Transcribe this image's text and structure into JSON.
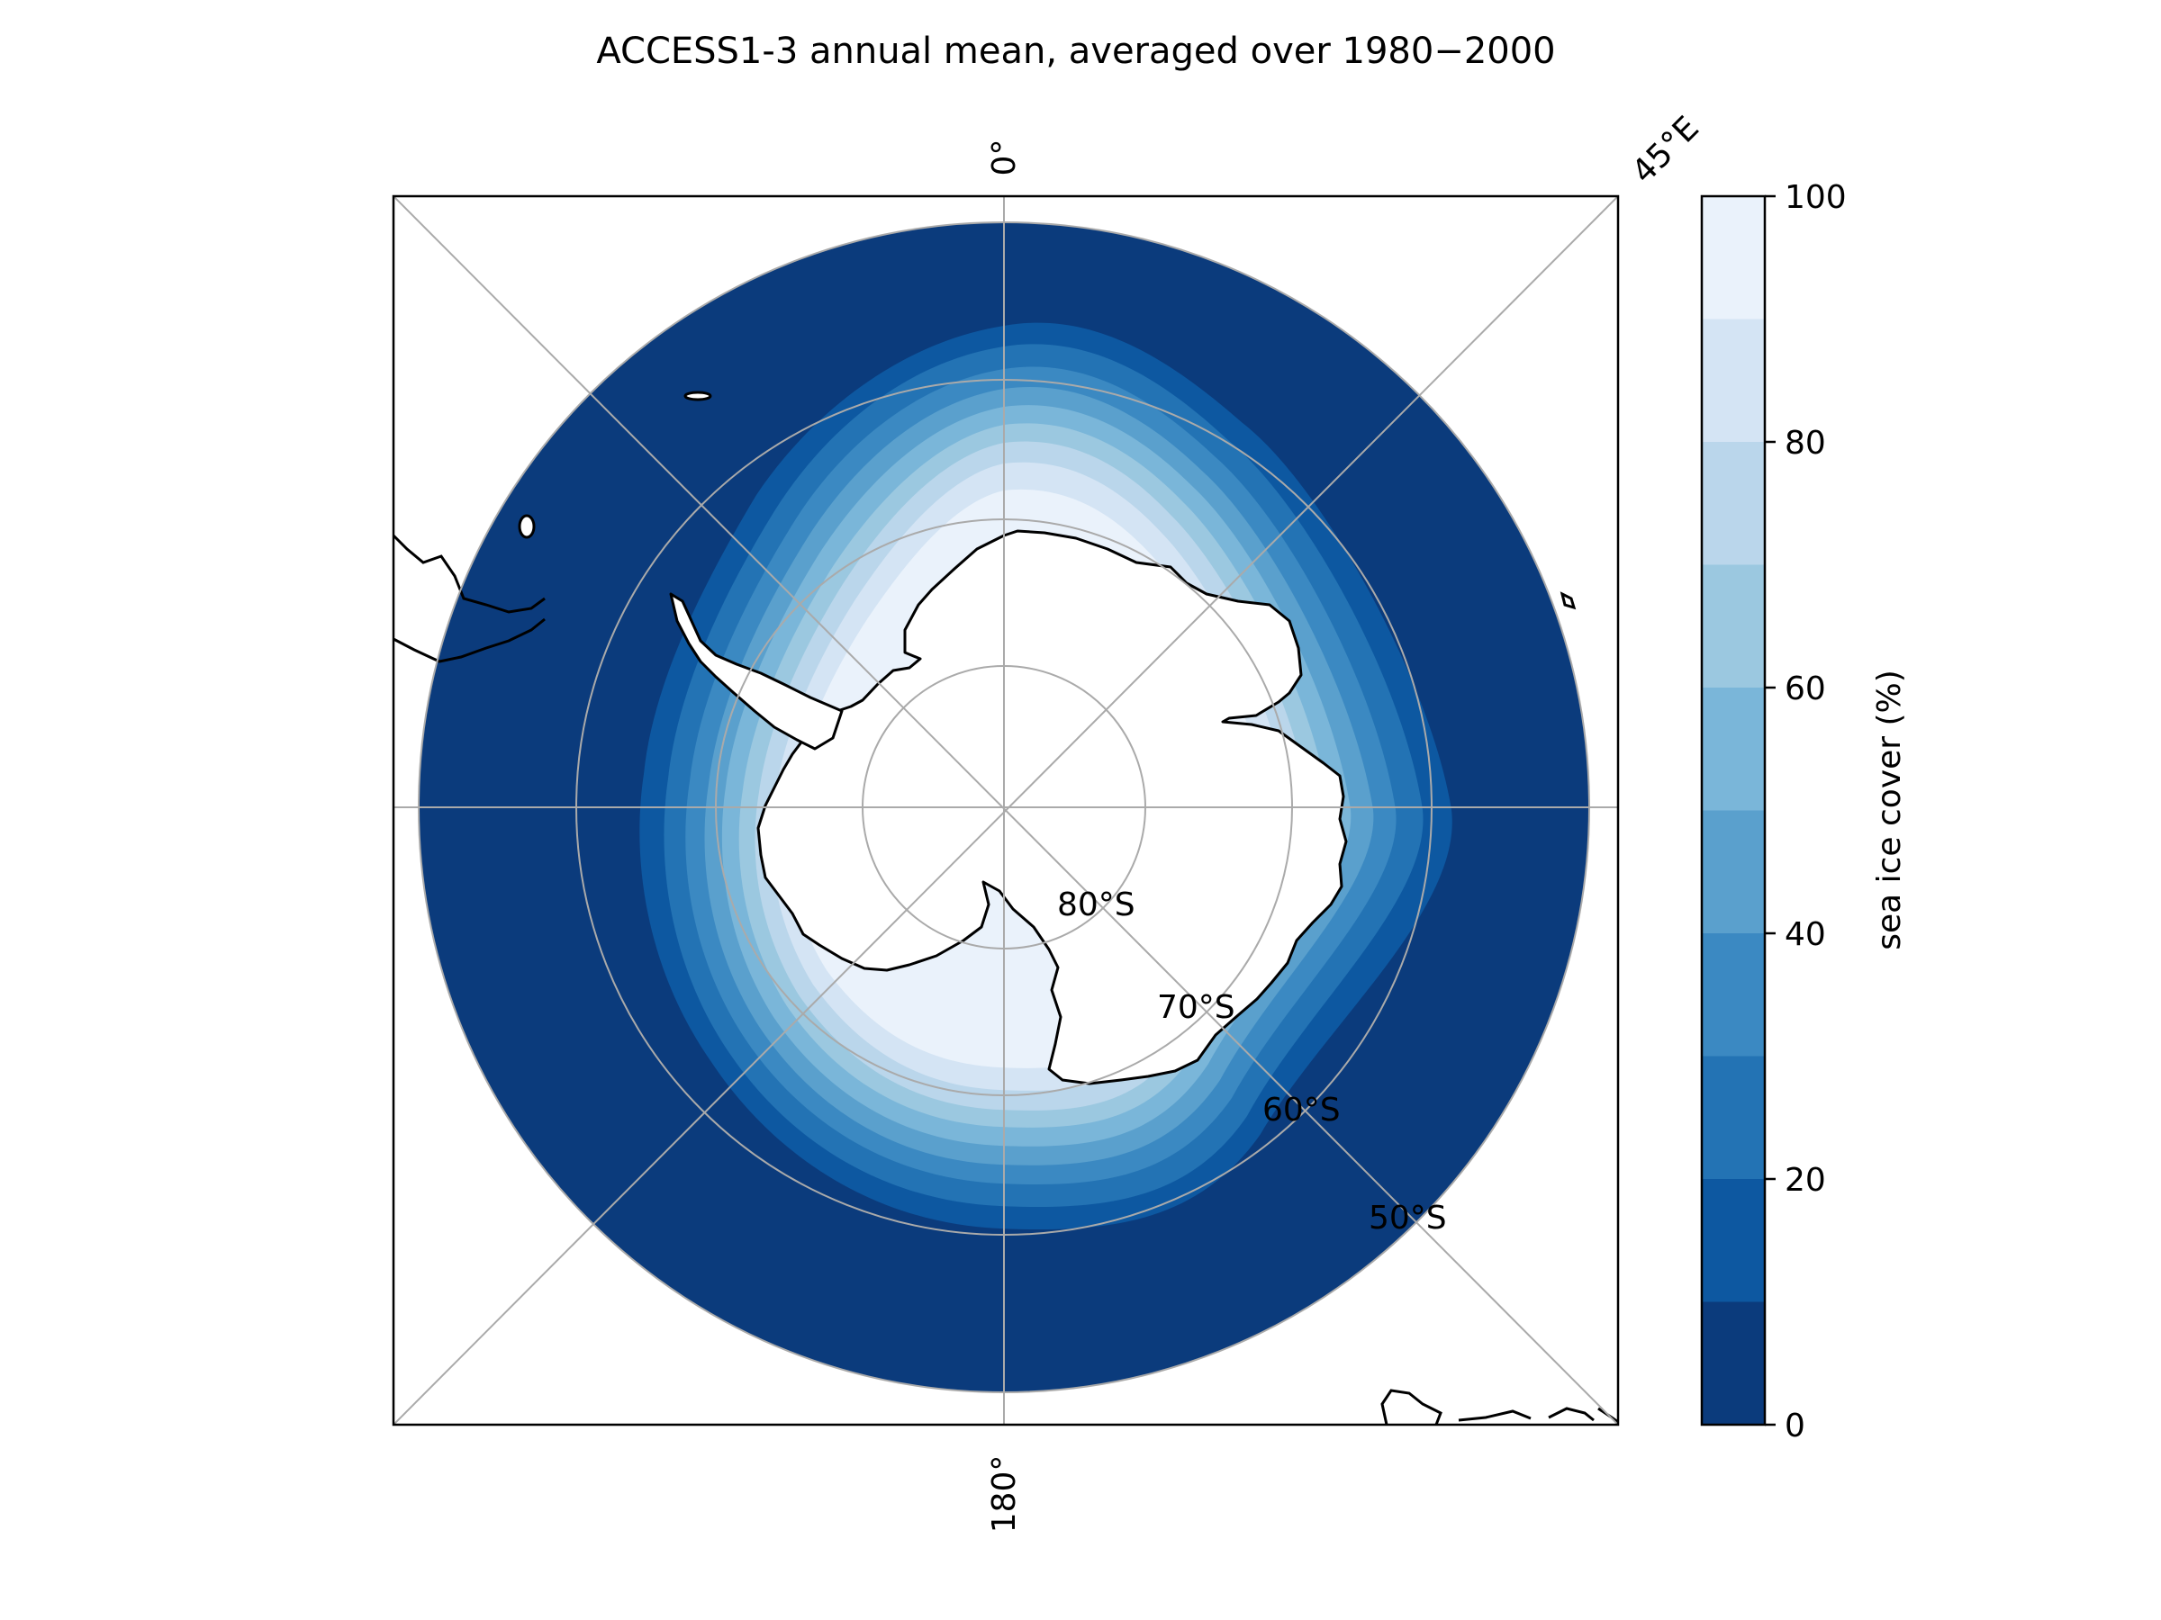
{
  "title": "ACCESS1-3 annual mean, averaged over 1980−2000",
  "map": {
    "projection": "south polar stereographic",
    "meridian_labels": [
      "0°",
      "45°E",
      "180°"
    ],
    "parallel_labels": [
      "80°S",
      "70°S",
      "60°S",
      "50°S"
    ],
    "gridline_color": "#aaaaaa",
    "coastline_color": "#000000"
  },
  "colorbar": {
    "label": "sea ice cover (%)",
    "tick_labels": [
      "0",
      "20",
      "40",
      "60",
      "80",
      "100"
    ],
    "levels": [
      0,
      10,
      20,
      30,
      40,
      50,
      60,
      70,
      80,
      90,
      100
    ],
    "colors": [
      "#0b3b7c",
      "#0d58a1",
      "#2373b4",
      "#3b89c2",
      "#5aa0cd",
      "#7ab6d9",
      "#9bc8e0",
      "#bad6eb",
      "#d4e4f4",
      "#eaf2fb"
    ]
  }
}
